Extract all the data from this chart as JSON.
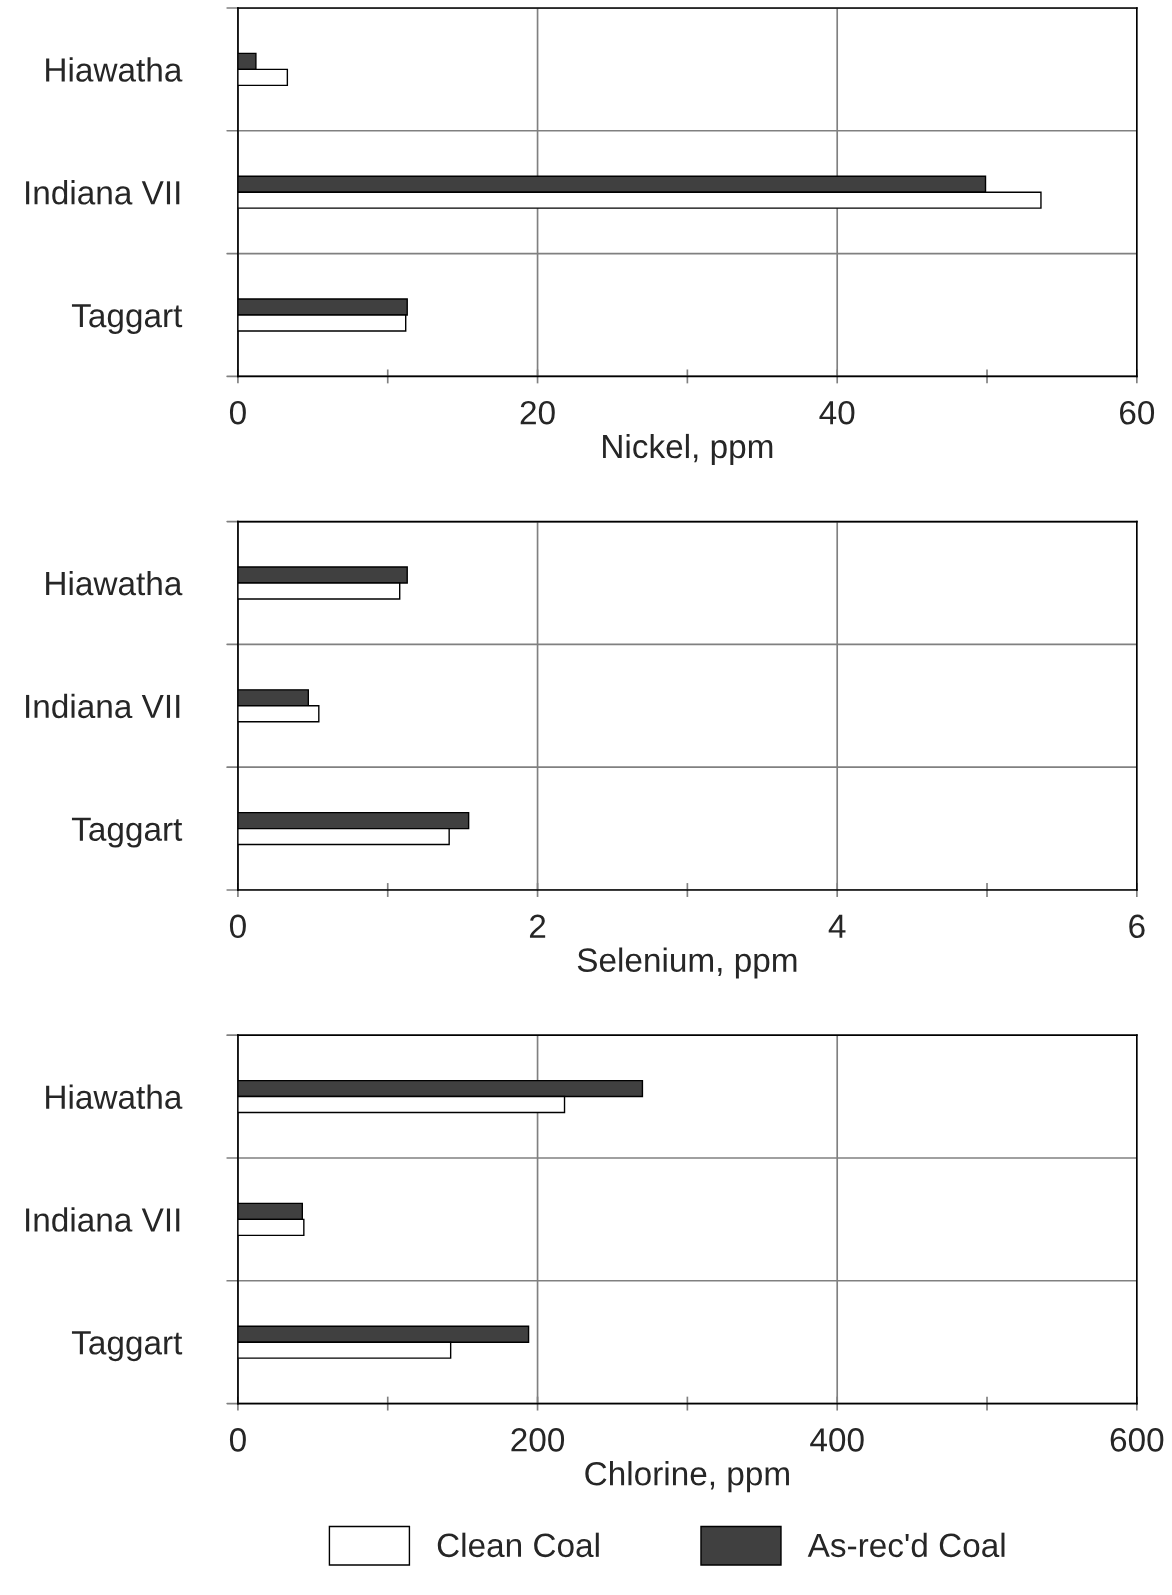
{
  "chart_data": [
    {
      "type": "bar",
      "orientation": "horizontal",
      "xlabel": "Nickel, ppm",
      "categories": [
        "Hiawatha",
        "Indiana VII",
        "Taggart"
      ],
      "series": [
        {
          "color": "#404040",
          "values": [
            1.2,
            49.9,
            11.3
          ]
        },
        {
          "color": "#ffffff",
          "values": [
            3.3,
            53.6,
            11.2
          ]
        }
      ],
      "xlim": [
        0,
        60
      ],
      "xticks": [
        0,
        {
          "value": 10,
          "label": null
        },
        20,
        {
          "value": 30,
          "label": null
        },
        40,
        {
          "value": 50,
          "label": null
        },
        60
      ],
      "grid": true
    },
    {
      "type": "bar",
      "orientation": "horizontal",
      "xlabel": "Selenium, ppm",
      "categories": [
        "Hiawatha",
        "Indiana VII",
        "Taggart"
      ],
      "series": [
        {
          "color": "#404040",
          "values": [
            1.13,
            0.47,
            1.54
          ]
        },
        {
          "color": "#ffffff",
          "values": [
            1.08,
            0.54,
            1.41
          ]
        }
      ],
      "xlim": [
        0,
        6
      ],
      "xticks": [
        0,
        {
          "value": 1,
          "label": null
        },
        2,
        {
          "value": 3,
          "label": null
        },
        4,
        {
          "value": 5,
          "label": null
        },
        6
      ],
      "grid": true
    },
    {
      "type": "bar",
      "orientation": "horizontal",
      "xlabel": "Chlorine, ppm",
      "categories": [
        "Hiawatha",
        "Indiana VII",
        "Taggart"
      ],
      "series": [
        {
          "name": "As-rec'd Coal",
          "color": "#404040",
          "values": [
            270,
            43,
            194
          ]
        },
        {
          "name": "Clean Coal",
          "color": "#ffffff",
          "values": [
            218,
            44,
            142
          ]
        }
      ],
      "xlim": [
        0,
        600
      ],
      "xticks": [
        0,
        {
          "value": 100,
          "label": null
        },
        200,
        {
          "value": 300,
          "label": null
        },
        400,
        {
          "value": 500,
          "label": null
        },
        600
      ],
      "grid": true,
      "legend": "bottom"
    }
  ]
}
